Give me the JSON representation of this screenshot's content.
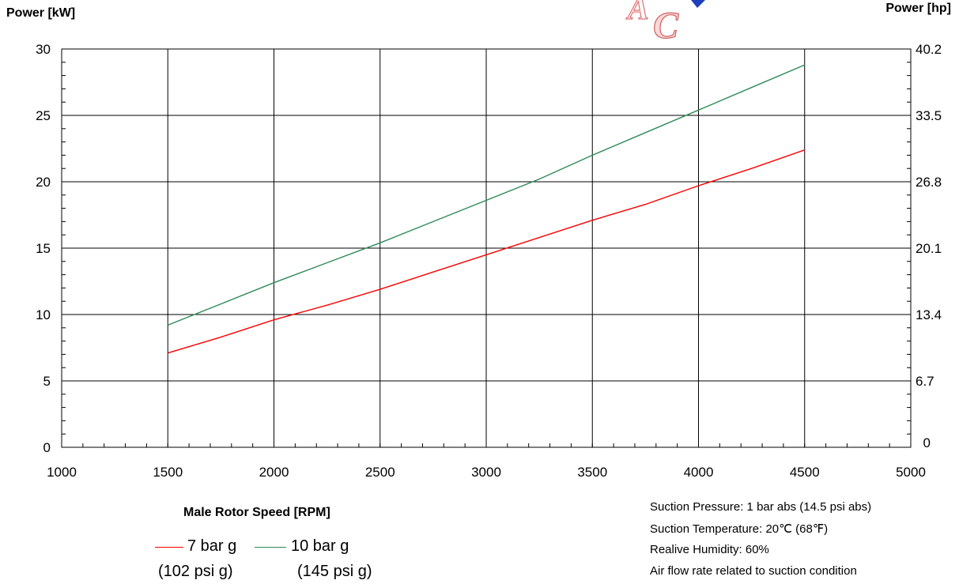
{
  "chart_data": {
    "type": "line",
    "xlabel": "Male Rotor Speed [RPM]",
    "ylabel_left": "Power [kW]",
    "ylabel_right": "Power [hp]",
    "xlim": [
      1000,
      5000
    ],
    "ylim": [
      0,
      30
    ],
    "x_ticks": [
      "1000",
      "1500",
      "2000",
      "2500",
      "3000",
      "3500",
      "4000",
      "4500",
      "5000"
    ],
    "y_ticks_left": [
      "0",
      "5",
      "10",
      "15",
      "20",
      "25",
      "30"
    ],
    "y_ticks_right": [
      "0",
      "6.7",
      "13.4",
      "20.1",
      "26.8",
      "33.5",
      "40.2"
    ],
    "grid": true,
    "series": [
      {
        "name": "7 bar g",
        "subname": "(102 psi g)",
        "color": "#ff0000",
        "x": [
          1500,
          1750,
          2000,
          2250,
          2500,
          2750,
          3000,
          3250,
          3500,
          3750,
          4000,
          4250,
          4500
        ],
        "y": [
          7.1,
          8.3,
          9.6,
          10.7,
          11.9,
          13.2,
          14.5,
          15.8,
          17.1,
          18.3,
          19.7,
          21.0,
          22.4
        ]
      },
      {
        "name": "10 bar g",
        "subname": "(145 psi g)",
        "color": "#2e8b57",
        "x": [
          1500,
          1750,
          2000,
          2250,
          2500,
          2750,
          3000,
          3250,
          3500,
          3750,
          4000,
          4250,
          4500
        ],
        "y": [
          9.2,
          10.8,
          12.4,
          13.9,
          15.4,
          17.0,
          18.6,
          20.2,
          22.0,
          23.7,
          25.4,
          27.1,
          28.8
        ]
      }
    ]
  },
  "conditions": {
    "line1": "Suction Pressure:   1 bar abs (14.5 psi abs)",
    "line2": "Suction Temperature:  20℃ (68℉)",
    "line3": "Realive Humidity:   60%",
    "line4": "Air flow rate related to suction condition"
  },
  "logo": {
    "text": "AC"
  }
}
